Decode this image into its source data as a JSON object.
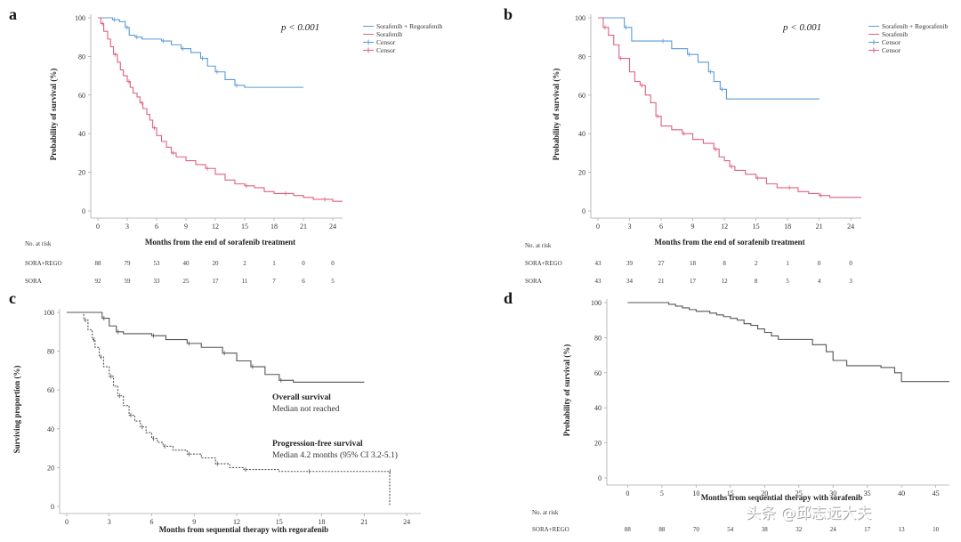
{
  "watermark": "头条 @邱志远大夫",
  "chart_data": [
    {
      "id": "a",
      "type": "line",
      "panel_label": "a",
      "p_value_text": "p < 0.001",
      "xlabel": "Months from the end of sorafenib treatment",
      "ylabel": "Probability of survival (%)",
      "xticks": [
        0,
        3,
        6,
        9,
        12,
        15,
        18,
        21,
        24
      ],
      "yticks": [
        0,
        20,
        40,
        60,
        80,
        100
      ],
      "xlim": [
        0,
        25
      ],
      "ylim": [
        0,
        100
      ],
      "legend": [
        "Sorafenib + Regorafenib",
        "Sorafenib",
        "Censor",
        "Censor"
      ],
      "series": [
        {
          "name": "Sorafenib + Regorafenib",
          "color": "#5b9bd5",
          "x": [
            0,
            1.5,
            2.2,
            2.8,
            3.2,
            3.8,
            4.5,
            6.5,
            7.5,
            8.5,
            9.5,
            10.5,
            11.2,
            12,
            13,
            14,
            15,
            21
          ],
          "y": [
            100,
            99,
            98,
            95,
            91,
            90,
            89,
            88,
            86,
            84,
            82,
            79,
            75,
            72,
            68,
            65,
            64,
            64
          ]
        },
        {
          "name": "Sorafenib",
          "color": "#e0607e",
          "x": [
            0,
            0.3,
            0.6,
            1,
            1.3,
            1.6,
            2,
            2.3,
            2.6,
            3,
            3.3,
            3.6,
            4,
            4.3,
            4.6,
            5,
            5.3,
            5.6,
            6,
            6.5,
            7,
            7.5,
            8,
            9,
            10,
            11,
            12,
            13,
            14,
            15,
            16,
            17,
            18,
            19,
            20,
            21,
            22,
            23,
            24,
            25
          ],
          "y": [
            100,
            97,
            93,
            89,
            85,
            81,
            77,
            73,
            70,
            67,
            64,
            61,
            59,
            56,
            53,
            50,
            47,
            43,
            39,
            36,
            33,
            30,
            28,
            26,
            24,
            22,
            19,
            16,
            14,
            13,
            12,
            10,
            9,
            9,
            8,
            7,
            6,
            6,
            5,
            5
          ]
        }
      ],
      "risk_table": {
        "title": "No. at risk",
        "rows": [
          {
            "label": "SORA+REGO",
            "values": [
              "88",
              "79",
              "53",
              "40",
              "20",
              "2",
              "1",
              "0",
              "0"
            ]
          },
          {
            "label": "SORA",
            "values": [
              "92",
              "59",
              "33",
              "25",
              "17",
              "11",
              "7",
              "6",
              "5"
            ]
          }
        ]
      }
    },
    {
      "id": "b",
      "type": "line",
      "panel_label": "b",
      "p_value_text": "p < 0.001",
      "xlabel": "Months from the end of sorafenib treatment",
      "ylabel": "Probability of survival (%)",
      "xticks": [
        0,
        3,
        6,
        9,
        12,
        15,
        18,
        21,
        24
      ],
      "yticks": [
        0,
        20,
        40,
        60,
        80,
        100
      ],
      "xlim": [
        0,
        25
      ],
      "ylim": [
        0,
        100
      ],
      "legend": [
        "Sorafenib + Regorafenib",
        "Sorafenib",
        "Censor",
        "Censor"
      ],
      "series": [
        {
          "name": "Sorafenib + Regorafenib",
          "color": "#5b9bd5",
          "x": [
            0,
            2.5,
            3.2,
            6,
            7,
            8.5,
            9.5,
            10.5,
            11,
            11.6,
            12.2,
            21
          ],
          "y": [
            100,
            95,
            88,
            88,
            84,
            81,
            77,
            72,
            67,
            63,
            58,
            58
          ]
        },
        {
          "name": "Sorafenib",
          "color": "#e0607e",
          "x": [
            0,
            0.5,
            1,
            1.5,
            2,
            3,
            3.5,
            4,
            4.5,
            5,
            5.5,
            6,
            7,
            8,
            9,
            10,
            11,
            11.5,
            12,
            12.5,
            13,
            14,
            15,
            16,
            17,
            18,
            19,
            20,
            21,
            22,
            23,
            25
          ],
          "y": [
            100,
            95,
            91,
            86,
            79,
            72,
            67,
            65,
            60,
            56,
            49,
            44,
            42,
            40,
            37,
            35,
            32,
            28,
            26,
            23,
            21,
            19,
            17,
            14,
            12,
            12,
            10,
            9,
            8,
            7,
            7,
            7
          ]
        }
      ],
      "risk_table": {
        "title": "No. at risk",
        "rows": [
          {
            "label": "SORA+REGO",
            "values": [
              "43",
              "39",
              "27",
              "18",
              "8",
              "2",
              "1",
              "0",
              "0"
            ]
          },
          {
            "label": "SORA",
            "values": [
              "43",
              "34",
              "21",
              "17",
              "12",
              "8",
              "5",
              "4",
              "3"
            ]
          }
        ]
      }
    },
    {
      "id": "c",
      "type": "line",
      "panel_label": "c",
      "xlabel": "Months from sequential therapy with regorafenib",
      "ylabel": "Surviving proportion (%)",
      "xticks": [
        0,
        3,
        6,
        9,
        12,
        15,
        18,
        21,
        24
      ],
      "yticks": [
        0,
        20,
        40,
        60,
        80,
        100
      ],
      "xlim": [
        0,
        25
      ],
      "ylim": [
        0,
        100
      ],
      "annotations": [
        {
          "bold": "Overall survival",
          "text": "Median not reached"
        },
        {
          "bold": "Progression-free survival",
          "text": "Median 4.2 months (95% CI 3.2-5.1)"
        }
      ],
      "series": [
        {
          "name": "Overall survival",
          "color": "#555555",
          "dash": false,
          "x": [
            0,
            2.5,
            3,
            3.5,
            4,
            6,
            7,
            8.5,
            9.5,
            11,
            12,
            13,
            14,
            15,
            16,
            21
          ],
          "y": [
            100,
            97,
            93,
            90,
            89,
            88,
            86,
            84,
            82,
            79,
            75,
            72,
            68,
            65,
            64,
            64
          ]
        },
        {
          "name": "Progression-free survival",
          "color": "#555555",
          "dash": true,
          "x": [
            0,
            1.2,
            1.5,
            1.8,
            2,
            2.3,
            2.6,
            3,
            3.3,
            3.6,
            4,
            4.4,
            4.8,
            5.2,
            5.6,
            6,
            6.4,
            6.8,
            7.5,
            8.5,
            9.5,
            10.5,
            11.5,
            12.5,
            15,
            17,
            20,
            22.7,
            22.8
          ],
          "y": [
            100,
            96,
            91,
            86,
            82,
            77,
            72,
            67,
            62,
            57,
            52,
            47,
            44,
            41,
            38,
            35,
            33,
            31,
            29,
            27,
            25,
            22,
            20,
            19,
            18,
            18,
            18,
            18,
            0
          ]
        }
      ]
    },
    {
      "id": "d",
      "type": "line",
      "panel_label": "d",
      "xlabel": "Months from sequential therapy with sorafenib",
      "ylabel": "Probability of survival (%)",
      "xticks": [
        0,
        5,
        10,
        15,
        20,
        25,
        30,
        35,
        40,
        45
      ],
      "yticks": [
        0,
        20,
        40,
        60,
        80,
        100
      ],
      "xlim": [
        -2,
        47
      ],
      "ylim": [
        0,
        100
      ],
      "series": [
        {
          "name": "SORA+REGO",
          "color": "#555555",
          "x": [
            0,
            5,
            6,
            7,
            8,
            9,
            10,
            11,
            12,
            13,
            14,
            15,
            16,
            17,
            18,
            19,
            20,
            21,
            22,
            24,
            27,
            29,
            30,
            32,
            35,
            37,
            39,
            40,
            47
          ],
          "y": [
            100,
            100,
            99,
            98,
            97,
            96,
            95,
            95,
            94,
            93,
            92,
            91,
            90,
            88,
            87,
            85,
            83,
            81,
            79,
            79,
            76,
            72,
            67,
            64,
            64,
            63,
            60,
            55,
            55
          ]
        }
      ],
      "risk_table": {
        "title": "No. at risk",
        "rows": [
          {
            "label": "SORA+REGO",
            "values": [
              "88",
              "88",
              "70",
              "54",
              "38",
              "32",
              "24",
              "17",
              "13",
              "10"
            ]
          }
        ]
      }
    }
  ]
}
